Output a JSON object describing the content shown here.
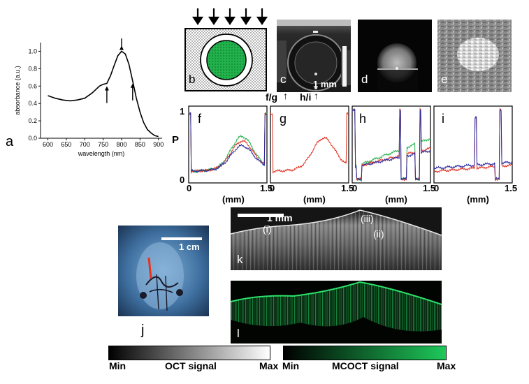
{
  "panel_labels": {
    "a": "a",
    "b": "b",
    "c": "c",
    "d": "d",
    "e": "e",
    "f": "f",
    "g": "g",
    "h": "h",
    "i": "i",
    "j": "j",
    "k": "k",
    "l": "l"
  },
  "absorbance_chart": {
    "ylabel": "absorbance (a.u.)",
    "xlabel": "wavelength (nm)",
    "x_ticks": [
      "600",
      "650",
      "700",
      "750",
      "800",
      "850",
      "900"
    ],
    "y_ticks": [
      "0.0",
      "0.2",
      "0.4",
      "0.6",
      "0.8",
      "1.0"
    ]
  },
  "chart_data": [
    {
      "type": "line",
      "title": "",
      "xlabel": "wavelength (nm)",
      "ylabel": "absorbance (a.u.)",
      "xlim": [
        580,
        910
      ],
      "ylim": [
        0,
        1.1
      ],
      "x": [
        600,
        620,
        640,
        660,
        680,
        700,
        720,
        740,
        750,
        760,
        770,
        780,
        790,
        800,
        810,
        820,
        830,
        840,
        850,
        860,
        870,
        880,
        890,
        900
      ],
      "series": [
        {
          "values": [
            0.49,
            0.46,
            0.44,
            0.43,
            0.44,
            0.46,
            0.52,
            0.6,
            0.62,
            0.63,
            0.72,
            0.84,
            0.95,
            1.0,
            0.97,
            0.85,
            0.66,
            0.46,
            0.3,
            0.18,
            0.1,
            0.06,
            0.03,
            0.02
          ]
        }
      ],
      "arrows_at_nm": [
        760,
        800,
        830
      ]
    },
    {
      "type": "line",
      "panels": [
        "f",
        "g",
        "h",
        "i"
      ],
      "ylabel": "P",
      "xlabel": "(mm)",
      "xlim": [
        0,
        1.5
      ],
      "ylim": [
        0,
        1
      ],
      "x_ticks_f": [
        "0",
        "1.5"
      ],
      "x_ticks_g": [
        "0",
        "1.5"
      ],
      "x_ticks_h": [
        "0",
        "1.5"
      ],
      "x_ticks_i": [
        "0",
        "1.5"
      ],
      "y_ticks": [
        "0",
        "1"
      ]
    }
  ],
  "scale_bars": {
    "c": "1 mm",
    "j": "1 cm",
    "k": "1 mm"
  },
  "beam_labels": {
    "fg": "f/g",
    "hi": "h/i"
  },
  "axis_P": "P",
  "x_unit": "(mm)",
  "panel_f_ticks": {
    "start": "0",
    "end": "1.5"
  },
  "panel_g_ticks": {
    "start": "0",
    "end": "1.5"
  },
  "panel_h_ticks": {
    "start": "0",
    "end": "1.5"
  },
  "panel_i_ticks": {
    "start": "0",
    "end": "1.5"
  },
  "y_top": "1",
  "y_bottom": "0",
  "region_labels": {
    "i": "(i)",
    "ii": "(ii)",
    "iii": "(iii)"
  },
  "colorbars": {
    "oct": {
      "min": "Min",
      "label": "OCT signal",
      "max": "Max"
    },
    "mcoct": {
      "min": "Min",
      "label": "MCOCT signal",
      "max": "Max"
    }
  },
  "colors": {
    "green": "#22b24c",
    "red": "#e0301e",
    "blue": "#2a2aa0",
    "mcoct_green": "#1ec85a"
  }
}
